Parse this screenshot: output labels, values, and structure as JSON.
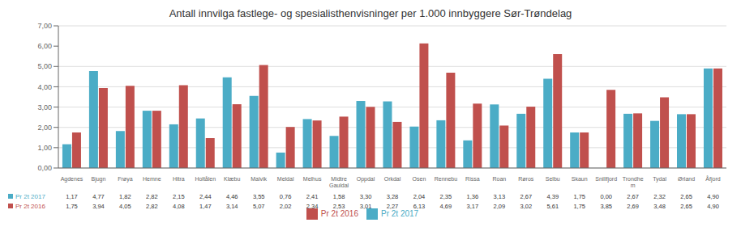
{
  "chart_data": {
    "type": "bar",
    "title": "Antall innvilga fastlege- og spesialisthenvisninger per 1.000 innbyggere Sør-Trøndelag",
    "categories": [
      "Agdenes",
      "Bjugn",
      "Frøya",
      "Hemne",
      "Hitra",
      "Holtålen",
      "Klæbu",
      "Malvik",
      "Meldal",
      "Melhus",
      "Midtre\nGauldal",
      "Oppdal",
      "Orkdal",
      "Osen",
      "Rennebu",
      "Rissa",
      "Roan",
      "Røros",
      "Selbu",
      "Skaun",
      "Snillfjord",
      "Trondhe\nm",
      "Tydal",
      "Ørland",
      "Åfjord"
    ],
    "series": [
      {
        "name": "Pr 2t 2017",
        "color": "#4bacc6",
        "values": [
          1.17,
          4.77,
          1.82,
          2.82,
          2.15,
          2.44,
          4.46,
          3.55,
          0.76,
          2.41,
          1.58,
          3.3,
          3.28,
          2.04,
          2.35,
          1.36,
          3.13,
          2.67,
          4.39,
          1.75,
          0.0,
          2.67,
          2.32,
          2.65,
          4.9
        ],
        "value_labels": [
          "1,17",
          "4,77",
          "1,82",
          "2,82",
          "2,15",
          "2,44",
          "4,46",
          "3,55",
          "0,76",
          "2,41",
          "1,58",
          "3,30",
          "3,28",
          "2,04",
          "2,35",
          "1,36",
          "3,13",
          "2,67",
          "4,39",
          "1,75",
          "0,00",
          "2,67",
          "2,32",
          "2,65",
          "4,90"
        ]
      },
      {
        "name": "Pr 2t 2016",
        "color": "#c0504d",
        "values": [
          1.75,
          3.94,
          4.05,
          2.82,
          4.08,
          1.47,
          3.14,
          5.07,
          2.02,
          2.34,
          2.53,
          3.01,
          2.27,
          6.13,
          4.69,
          3.17,
          2.09,
          3.02,
          5.61,
          1.75,
          3.85,
          2.69,
          3.48,
          2.65,
          4.9
        ],
        "value_labels": [
          "1,75",
          "3,94",
          "4,05",
          "2,82",
          "4,08",
          "1,47",
          "3,14",
          "5,07",
          "2,02",
          "2,34",
          "2,53",
          "3,01",
          "2,27",
          "6,13",
          "4,69",
          "3,17",
          "2,09",
          "3,02",
          "5,61",
          "1,75",
          "3,85",
          "2,69",
          "3,48",
          "2,65",
          "4,90"
        ]
      }
    ],
    "ylim": [
      0,
      7.0
    ],
    "yticks": [
      {
        "value": 0.0,
        "label": "0,00"
      },
      {
        "value": 1.0,
        "label": "1,00"
      },
      {
        "value": 2.0,
        "label": "2,00"
      },
      {
        "value": 3.0,
        "label": "3,00"
      },
      {
        "value": 4.0,
        "label": "4,00"
      },
      {
        "value": 5.0,
        "label": "5,00"
      },
      {
        "value": 6.0,
        "label": "6,00"
      },
      {
        "value": 7.0,
        "label": "7,00"
      }
    ],
    "grid": true,
    "legend": "bottom"
  }
}
